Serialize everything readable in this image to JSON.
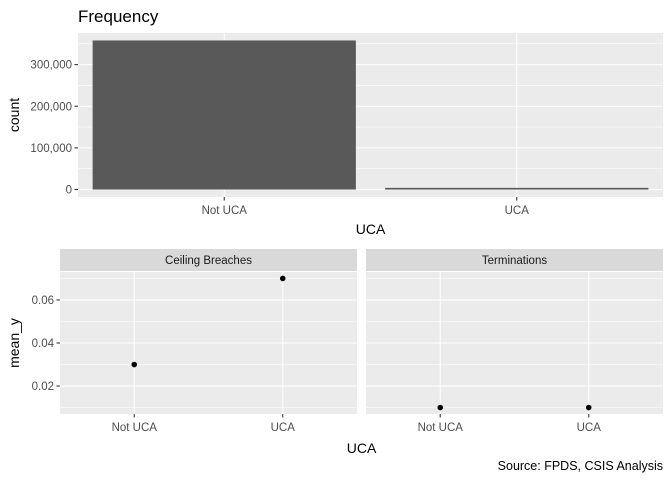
{
  "caption": "Source: FPDS, CSIS Analysis",
  "chart_data": [
    {
      "type": "bar",
      "title": "Frequency",
      "xlabel": "UCA",
      "ylabel": "count",
      "categories": [
        "Not UCA",
        "UCA"
      ],
      "values": [
        358000,
        4000
      ],
      "ylim": [
        -17900,
        375900
      ],
      "yticks": [
        0,
        100000,
        200000,
        300000
      ],
      "ytick_labels": [
        "0",
        "100,000",
        "200,000",
        "300,000"
      ],
      "bar_color": "#595959",
      "panel_background": "#ebebeb",
      "grid": true
    },
    {
      "type": "scatter",
      "xlabel": "UCA",
      "ylabel": "mean_y",
      "ylim": [
        0.007,
        0.073
      ],
      "yticks": [
        0.02,
        0.04,
        0.06
      ],
      "ytick_labels": [
        "0.02",
        "0.04",
        "0.06"
      ],
      "categories": [
        "Not UCA",
        "UCA"
      ],
      "facets": [
        {
          "name": "Ceiling Breaches",
          "values": [
            0.03,
            0.07
          ]
        },
        {
          "name": "Terminations",
          "values": [
            0.01,
            0.01
          ]
        }
      ],
      "point_color": "#000000",
      "strip_color": "#d9d9d9",
      "panel_background": "#ebebeb",
      "grid": true
    }
  ]
}
